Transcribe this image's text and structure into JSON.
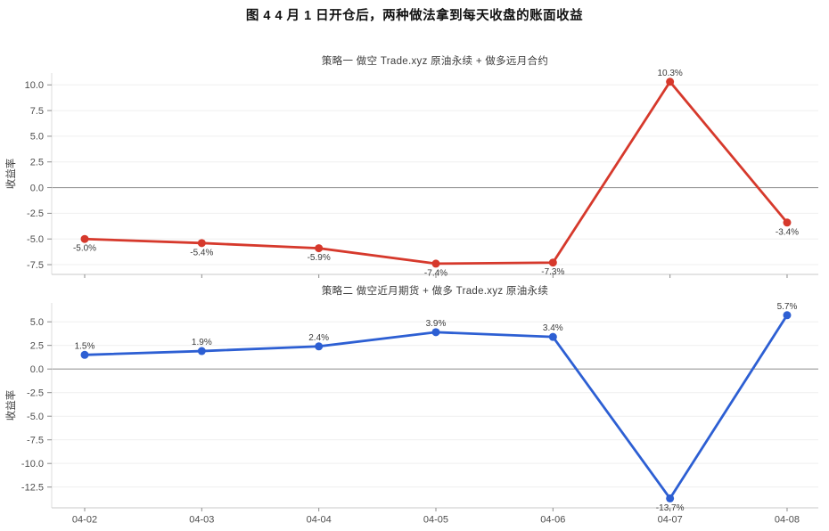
{
  "figure": {
    "title": "图 4  4 月 1 日开仓后，两种做法拿到每天收盘的账面收益"
  },
  "chart_data": [
    {
      "type": "line",
      "title": "策略一  做空 Trade.xyz 原油永续 + 做多远月合约",
      "xlabel": "",
      "ylabel": "收益率",
      "categories": [
        "04-02",
        "04-03",
        "04-04",
        "04-05",
        "04-06",
        "04-07",
        "04-08"
      ],
      "values": [
        -5.0,
        -5.4,
        -5.9,
        -7.4,
        -7.3,
        10.3,
        -3.4
      ],
      "point_labels": [
        "-5.0%",
        "-5.4%",
        "-5.9%",
        "-7.4%",
        "-7.3%",
        "10.3%",
        "-3.4%"
      ],
      "label_side": [
        "below",
        "below",
        "below",
        "below",
        "below",
        "above",
        "below"
      ],
      "series_color": "#d6392c",
      "ylim": [
        -8.45,
        11.15
      ],
      "yticks": [
        10.0,
        7.5,
        5.0,
        2.5,
        0.0,
        -2.5,
        -5.0,
        -7.5
      ],
      "show_x_tick_labels": false,
      "grid": true,
      "zero_line": true,
      "legend": "none"
    },
    {
      "type": "line",
      "title": "策略二  做空近月期货 + 做多 Trade.xyz 原油永续",
      "xlabel": "",
      "ylabel": "收益率",
      "categories": [
        "04-02",
        "04-03",
        "04-04",
        "04-05",
        "04-06",
        "04-07",
        "04-08"
      ],
      "values": [
        1.5,
        1.9,
        2.4,
        3.9,
        3.4,
        -13.7,
        5.7
      ],
      "point_labels": [
        "1.5%",
        "1.9%",
        "2.4%",
        "3.9%",
        "3.4%",
        "-13.7%",
        "5.7%"
      ],
      "label_side": [
        "above",
        "above",
        "above",
        "above",
        "above",
        "below",
        "above"
      ],
      "series_color": "#2d5fd3",
      "ylim": [
        -14.7,
        7.0
      ],
      "yticks": [
        5.0,
        2.5,
        0.0,
        -2.5,
        -5.0,
        -7.5,
        -10.0,
        -12.5
      ],
      "show_x_tick_labels": true,
      "grid": true,
      "zero_line": true,
      "legend": "none"
    }
  ]
}
